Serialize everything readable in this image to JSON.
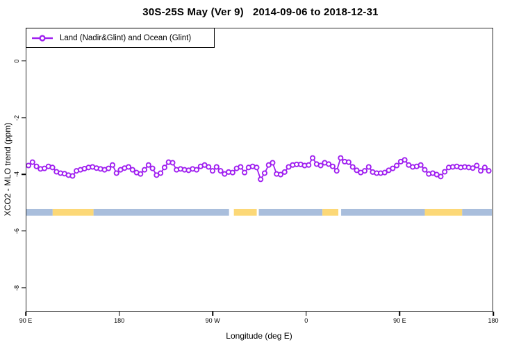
{
  "title": "30S-25S May (Ver 9)   2014-09-06 to 2018-12-31",
  "legend": {
    "label": "Land (Nadir&Glint) and Ocean (Glint)"
  },
  "axes": {
    "x_label": "Longitude (deg E)",
    "y_label": "XCO2 - MLO trend (ppm)"
  },
  "chart_data": {
    "type": "line",
    "title": "30S-25S May (Ver 9)   2014-09-06 to 2018-12-31",
    "xlabel": "Longitude (deg E)",
    "ylabel": "XCO2 - MLO trend (ppm)",
    "series_name": "Land (Nadir&Glint) and Ocean (Glint)",
    "marker": "open-circle",
    "color": "#A020F0",
    "grid": false,
    "legend_position": "top-left",
    "xlim": [
      90,
      540
    ],
    "ylim": [
      -8.84,
      1.17
    ],
    "x_ticks": [
      {
        "lon": 90,
        "label": "90 E"
      },
      {
        "lon": 180,
        "label": "180"
      },
      {
        "lon": 270,
        "label": "90 W"
      },
      {
        "lon": 360,
        "label": "0"
      },
      {
        "lon": 450,
        "label": "90 E"
      },
      {
        "lon": 540,
        "label": "180"
      }
    ],
    "y_ticks": [
      {
        "v": 0,
        "label": "0"
      },
      {
        "v": -2,
        "label": "-2"
      },
      {
        "v": -4,
        "label": "-4"
      },
      {
        "v": -6,
        "label": "-6"
      },
      {
        "v": -8,
        "label": "-8"
      }
    ],
    "x_start": 92,
    "x_step": 3.87,
    "values": [
      -3.7,
      -3.58,
      -3.73,
      -3.82,
      -3.8,
      -3.73,
      -3.77,
      -3.92,
      -3.97,
      -3.99,
      -4.04,
      -4.07,
      -3.89,
      -3.85,
      -3.81,
      -3.77,
      -3.75,
      -3.79,
      -3.82,
      -3.85,
      -3.8,
      -3.68,
      -3.97,
      -3.85,
      -3.79,
      -3.75,
      -3.85,
      -3.95,
      -4.0,
      -3.85,
      -3.68,
      -3.8,
      -4.04,
      -3.97,
      -3.77,
      -3.58,
      -3.6,
      -3.85,
      -3.82,
      -3.85,
      -3.87,
      -3.82,
      -3.85,
      -3.73,
      -3.68,
      -3.75,
      -3.89,
      -3.75,
      -3.89,
      -4.0,
      -3.93,
      -3.95,
      -3.8,
      -3.75,
      -3.95,
      -3.77,
      -3.73,
      -3.77,
      -4.19,
      -3.97,
      -3.68,
      -3.6,
      -4.0,
      -4.02,
      -3.93,
      -3.75,
      -3.68,
      -3.66,
      -3.66,
      -3.7,
      -3.68,
      -3.43,
      -3.65,
      -3.7,
      -3.6,
      -3.65,
      -3.73,
      -3.89,
      -3.43,
      -3.56,
      -3.58,
      -3.75,
      -3.87,
      -3.95,
      -3.89,
      -3.75,
      -3.93,
      -3.97,
      -3.97,
      -3.95,
      -3.87,
      -3.8,
      -3.7,
      -3.56,
      -3.5,
      -3.68,
      -3.75,
      -3.73,
      -3.68,
      -3.85,
      -4.0,
      -3.97,
      -4.02,
      -4.09,
      -3.92,
      -3.77,
      -3.75,
      -3.73,
      -3.77,
      -3.75,
      -3.77,
      -3.79,
      -3.7,
      -3.89,
      -3.77,
      -3.89
    ],
    "band": {
      "description": "land/ocean coverage strip",
      "y_top": -5.24,
      "y_bottom": -5.48,
      "colors": {
        "ocean": "#A9BEDC",
        "land": "#FCD877"
      },
      "segments": [
        {
          "type": "ocean",
          "from": 90,
          "to": 115.4
        },
        {
          "type": "land",
          "from": 115.4,
          "to": 154.9
        },
        {
          "type": "ocean",
          "from": 154.9,
          "to": 285.9
        },
        {
          "type": "gap",
          "from": 285.9,
          "to": 290.6
        },
        {
          "type": "land",
          "from": 290.6,
          "to": 312.7
        },
        {
          "type": "gap",
          "from": 312.7,
          "to": 314.7
        },
        {
          "type": "ocean",
          "from": 314.7,
          "to": 376.2
        },
        {
          "type": "land",
          "from": 376.2,
          "to": 391.6
        },
        {
          "type": "gap",
          "from": 391.6,
          "to": 394.3
        },
        {
          "type": "ocean",
          "from": 394.3,
          "to": 475.2
        },
        {
          "type": "land",
          "from": 475.2,
          "to": 511.3
        },
        {
          "type": "ocean",
          "from": 511.3,
          "to": 540
        }
      ]
    }
  }
}
